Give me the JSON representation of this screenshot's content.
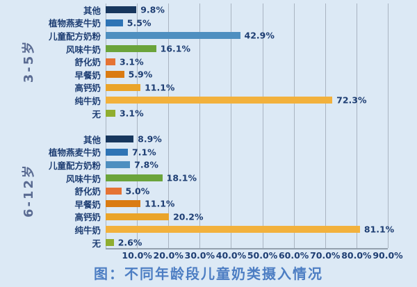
{
  "colors": {
    "background": "#dce9f5",
    "grid": "#a9b4c1",
    "axis_text": "#1e3e73",
    "group_label_text": "#5a6b92",
    "caption_text": "#4d7ec3"
  },
  "chart_data": {
    "type": "bar",
    "orientation": "horizontal",
    "title": "图：不同年龄段儿童奶类摄入情况",
    "xlabel": "",
    "ylabel": "",
    "xlim": [
      0,
      90
    ],
    "grid": true,
    "x_tick_labels": [
      "10.0%",
      "20.0%",
      "30.0%",
      "40.0%",
      "50.0%",
      "60.0%",
      "70.0%",
      "80.0%",
      "90.0%"
    ],
    "categories": [
      "其他",
      "植物燕麦牛奶",
      "儿童配方奶粉",
      "风味牛奶",
      "舒化奶",
      "早餐奶",
      "高钙奶",
      "纯牛奶",
      "无"
    ],
    "category_colors": [
      "#17375e",
      "#2e74b5",
      "#4e8fc0",
      "#6ba43b",
      "#e57334",
      "#da7b12",
      "#eaa42a",
      "#f2b13c",
      "#90ae2f"
    ],
    "series": [
      {
        "name": "3-5岁",
        "values": [
          9.8,
          5.5,
          42.9,
          16.1,
          3.1,
          5.9,
          11.1,
          72.3,
          3.1
        ],
        "labels": [
          "9.8%",
          "5.5%",
          "42.9%",
          "16.1%",
          "3.1%",
          "5.9%",
          "11.1%",
          "72.3%",
          "3.1%"
        ]
      },
      {
        "name": "6-12岁",
        "values": [
          8.9,
          7.1,
          7.8,
          18.1,
          5.0,
          11.1,
          20.2,
          81.1,
          2.6
        ],
        "labels": [
          "8.9%",
          "7.1%",
          "7.8%",
          "18.1%",
          "5.0%",
          "11.1%",
          "20.2%",
          "81.1%",
          "2.6%"
        ]
      }
    ]
  }
}
